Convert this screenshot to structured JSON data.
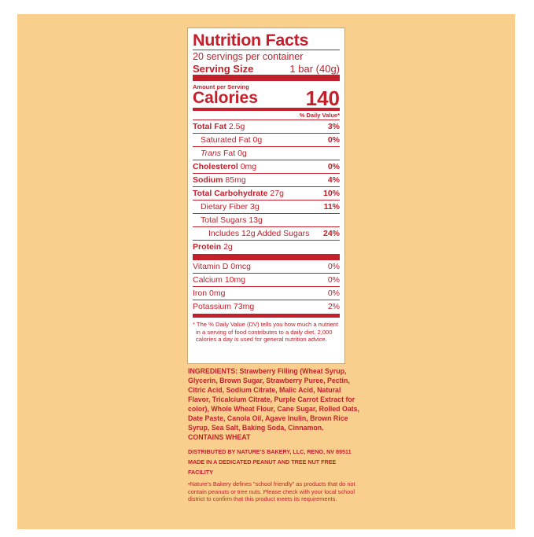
{
  "label": {
    "title": "Nutrition Facts",
    "servings": "20 servings per container",
    "serving_size_label": "Serving Size",
    "serving_size_value": "1 bar (40g)",
    "amount_per_serving": "Amount per Serving",
    "calories_label": "Calories",
    "calories_value": "140",
    "daily_value_header": "% Daily Value*",
    "nutrients": [
      {
        "name": "Total Fat",
        "amount": "2.5g",
        "dv": "3%"
      },
      {
        "name": "Saturated Fat",
        "amount": "0g",
        "dv": "0%"
      },
      {
        "name": "Trans",
        "name2": "Fat",
        "amount": "0g",
        "dv": ""
      },
      {
        "name": "Cholesterol",
        "amount": "0mg",
        "dv": "0%"
      },
      {
        "name": "Sodium",
        "amount": "85mg",
        "dv": "4%"
      },
      {
        "name": "Total Carbohydrate",
        "amount": "27g",
        "dv": "10%"
      },
      {
        "name": "Dietary Fiber",
        "amount": "3g",
        "dv": "11%"
      },
      {
        "name": "Total Sugars",
        "amount": "13g",
        "dv": ""
      },
      {
        "name": "Includes 12g Added Sugars",
        "amount": "",
        "dv": "24%"
      },
      {
        "name": "Protein",
        "amount": "2g",
        "dv": ""
      }
    ],
    "vitamins": [
      {
        "name": "Vitamin D 0mcg",
        "dv": "0%"
      },
      {
        "name": "Calcium 10mg",
        "dv": "0%"
      },
      {
        "name": "Iron 0mg",
        "dv": "0%"
      },
      {
        "name": "Potassium 73mg",
        "dv": "2%"
      }
    ],
    "footnote": "* The % Daily Value (DV) tells you how much a nutrient in a serving of food contributes to a daily diet. 2,000 calories a day is used for general nutrition advice."
  },
  "ingredients": {
    "heading": "INGREDIENTS:",
    "text": " Strawberry Filling (Wheat Syrup, Glycerin, Brown Sugar, Strawberry Puree, Pectin, Citric Acid, Sodium Citrate, Malic Acid, Natural Flavor, Tricalcium Citrate, Purple Carrot Extract for color), Whole Wheat Flour, Cane Sugar, Rolled Oats, Date Paste, Canola Oil, Agave Inulin, Brown Rice Syrup, Sea Salt, Baking Soda, Cinnamon.",
    "allergen": "CONTAINS WHEAT"
  },
  "distributed": "DISTRIBUTED BY NATURE'S BAKERY, LLC, RENO, NV 89511",
  "facility": "MADE IN A DEDICATED PEANUT AND TREE NUT FREE FACILITY",
  "school_friendly": "•Nature's Bakery defines \"school friendly\" as products that do not contain peanuts or tree nuts. Please check with your local school district to confirm that this product meets its requirements.",
  "colors": {
    "label_red": "#c4202b",
    "background": "#f9cf8e"
  }
}
